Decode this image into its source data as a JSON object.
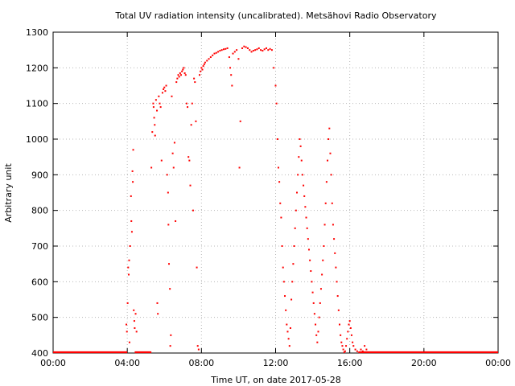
{
  "chart_data": {
    "type": "scatter",
    "title": "Total UV radiation intensity (uncalibrated). Metsähovi Radio Observatory",
    "xlabel": "Time UT, on date 2017-05-28",
    "ylabel": "Arbitrary unit",
    "xlim": [
      0,
      24
    ],
    "ylim": [
      400,
      1300
    ],
    "x_unit": "hours UT",
    "x_ticks": [
      0,
      4,
      8,
      12,
      16,
      20,
      24
    ],
    "x_tick_labels": [
      "00:00",
      "04:00",
      "08:00",
      "12:00",
      "16:00",
      "20:00",
      "00:00"
    ],
    "y_ticks": [
      400,
      500,
      600,
      700,
      800,
      900,
      1000,
      1100,
      1200,
      1300
    ],
    "y_tick_labels": [
      "400",
      "500",
      "600",
      "700",
      "800",
      "900",
      "1000",
      "1100",
      "1200",
      "1300"
    ],
    "grid": true,
    "color": "#ff0000",
    "series": [
      {
        "points": [
          [
            3.95,
            480
          ],
          [
            3.98,
            460
          ],
          [
            4.02,
            540
          ],
          [
            4.05,
            640
          ],
          [
            4.08,
            620
          ],
          [
            4.1,
            660
          ],
          [
            4.12,
            430
          ],
          [
            4.15,
            700
          ],
          [
            4.2,
            840
          ],
          [
            4.22,
            770
          ],
          [
            4.25,
            740
          ],
          [
            4.28,
            910
          ],
          [
            4.3,
            880
          ],
          [
            4.32,
            970
          ],
          [
            4.35,
            520
          ],
          [
            4.38,
            490
          ],
          [
            4.4,
            470
          ],
          [
            4.45,
            510
          ],
          [
            4.5,
            460
          ],
          [
            5.3,
            920
          ],
          [
            5.35,
            1020
          ],
          [
            5.4,
            1100
          ],
          [
            5.42,
            1090
          ],
          [
            5.45,
            1060
          ],
          [
            5.48,
            1040
          ],
          [
            5.5,
            1010
          ],
          [
            5.55,
            1110
          ],
          [
            5.6,
            1080
          ],
          [
            5.62,
            540
          ],
          [
            5.65,
            510
          ],
          [
            5.7,
            1120
          ],
          [
            5.75,
            1100
          ],
          [
            5.8,
            1090
          ],
          [
            5.85,
            940
          ],
          [
            5.9,
            1130
          ],
          [
            5.95,
            1140
          ],
          [
            6.0,
            1145
          ],
          [
            6.05,
            1135
          ],
          [
            6.1,
            1150
          ],
          [
            6.15,
            900
          ],
          [
            6.2,
            850
          ],
          [
            6.22,
            760
          ],
          [
            6.25,
            650
          ],
          [
            6.3,
            580
          ],
          [
            6.32,
            420
          ],
          [
            6.35,
            450
          ],
          [
            6.4,
            1120
          ],
          [
            6.45,
            960
          ],
          [
            6.5,
            920
          ],
          [
            6.55,
            990
          ],
          [
            6.6,
            770
          ],
          [
            6.65,
            1160
          ],
          [
            6.7,
            1170
          ],
          [
            6.75,
            1180
          ],
          [
            6.8,
            1175
          ],
          [
            6.85,
            1185
          ],
          [
            6.9,
            1180
          ],
          [
            6.95,
            1190
          ],
          [
            7.0,
            1195
          ],
          [
            7.05,
            1200
          ],
          [
            7.1,
            1185
          ],
          [
            7.15,
            1180
          ],
          [
            7.2,
            1100
          ],
          [
            7.25,
            1090
          ],
          [
            7.3,
            950
          ],
          [
            7.35,
            940
          ],
          [
            7.4,
            870
          ],
          [
            7.45,
            1040
          ],
          [
            7.5,
            1100
          ],
          [
            7.55,
            800
          ],
          [
            7.6,
            1170
          ],
          [
            7.65,
            1160
          ],
          [
            7.7,
            1050
          ],
          [
            7.75,
            640
          ],
          [
            7.8,
            420
          ],
          [
            7.85,
            410
          ],
          [
            7.9,
            1180
          ],
          [
            7.95,
            1190
          ],
          [
            8.0,
            1200
          ],
          [
            8.05,
            1195
          ],
          [
            8.1,
            1205
          ],
          [
            8.15,
            1210
          ],
          [
            8.2,
            1215
          ],
          [
            8.3,
            1220
          ],
          [
            8.4,
            1225
          ],
          [
            8.5,
            1230
          ],
          [
            8.6,
            1235
          ],
          [
            8.7,
            1240
          ],
          [
            8.8,
            1242
          ],
          [
            8.9,
            1245
          ],
          [
            9.0,
            1248
          ],
          [
            9.1,
            1250
          ],
          [
            9.2,
            1252
          ],
          [
            9.3,
            1253
          ],
          [
            9.4,
            1255
          ],
          [
            9.5,
            1230
          ],
          [
            9.55,
            1200
          ],
          [
            9.6,
            1180
          ],
          [
            9.65,
            1150
          ],
          [
            9.7,
            1240
          ],
          [
            9.8,
            1245
          ],
          [
            9.9,
            1250
          ],
          [
            10.0,
            1225
          ],
          [
            10.05,
            920
          ],
          [
            10.1,
            1050
          ],
          [
            10.2,
            1255
          ],
          [
            10.3,
            1260
          ],
          [
            10.4,
            1258
          ],
          [
            10.5,
            1255
          ],
          [
            10.6,
            1250
          ],
          [
            10.7,
            1245
          ],
          [
            10.8,
            1248
          ],
          [
            10.9,
            1250
          ],
          [
            11.0,
            1252
          ],
          [
            11.1,
            1255
          ],
          [
            11.2,
            1250
          ],
          [
            11.3,
            1248
          ],
          [
            11.4,
            1252
          ],
          [
            11.5,
            1255
          ],
          [
            11.6,
            1250
          ],
          [
            11.7,
            1253
          ],
          [
            11.8,
            1250
          ],
          [
            11.9,
            1200
          ],
          [
            12.0,
            1150
          ],
          [
            12.05,
            1100
          ],
          [
            12.1,
            1000
          ],
          [
            12.15,
            920
          ],
          [
            12.2,
            880
          ],
          [
            12.25,
            820
          ],
          [
            12.3,
            780
          ],
          [
            12.35,
            700
          ],
          [
            12.4,
            640
          ],
          [
            12.45,
            600
          ],
          [
            12.5,
            560
          ],
          [
            12.55,
            520
          ],
          [
            12.6,
            480
          ],
          [
            12.65,
            460
          ],
          [
            12.7,
            440
          ],
          [
            12.75,
            420
          ],
          [
            12.8,
            470
          ],
          [
            12.85,
            550
          ],
          [
            12.9,
            600
          ],
          [
            12.95,
            650
          ],
          [
            13.0,
            700
          ],
          [
            13.05,
            750
          ],
          [
            13.1,
            800
          ],
          [
            13.15,
            850
          ],
          [
            13.2,
            900
          ],
          [
            13.25,
            950
          ],
          [
            13.3,
            1000
          ],
          [
            13.35,
            980
          ],
          [
            13.4,
            940
          ],
          [
            13.45,
            900
          ],
          [
            13.5,
            870
          ],
          [
            13.55,
            840
          ],
          [
            13.6,
            810
          ],
          [
            13.65,
            780
          ],
          [
            13.7,
            750
          ],
          [
            13.75,
            720
          ],
          [
            13.8,
            690
          ],
          [
            13.85,
            660
          ],
          [
            13.9,
            630
          ],
          [
            13.95,
            600
          ],
          [
            14.0,
            570
          ],
          [
            14.05,
            540
          ],
          [
            14.1,
            510
          ],
          [
            14.15,
            480
          ],
          [
            14.2,
            450
          ],
          [
            14.25,
            430
          ],
          [
            14.3,
            460
          ],
          [
            14.35,
            500
          ],
          [
            14.4,
            540
          ],
          [
            14.45,
            580
          ],
          [
            14.5,
            620
          ],
          [
            14.55,
            660
          ],
          [
            14.6,
            700
          ],
          [
            14.65,
            760
          ],
          [
            14.7,
            820
          ],
          [
            14.75,
            880
          ],
          [
            14.8,
            940
          ],
          [
            14.85,
            1000
          ],
          [
            14.9,
            1030
          ],
          [
            14.95,
            960
          ],
          [
            15.0,
            900
          ],
          [
            15.05,
            820
          ],
          [
            15.1,
            760
          ],
          [
            15.15,
            720
          ],
          [
            15.2,
            680
          ],
          [
            15.25,
            640
          ],
          [
            15.3,
            600
          ],
          [
            15.35,
            560
          ],
          [
            15.4,
            520
          ],
          [
            15.45,
            480
          ],
          [
            15.5,
            450
          ],
          [
            15.55,
            430
          ],
          [
            15.6,
            420
          ],
          [
            15.65,
            410
          ],
          [
            15.7,
            400
          ],
          [
            15.75,
            405
          ],
          [
            15.8,
            420
          ],
          [
            15.85,
            440
          ],
          [
            15.9,
            460
          ],
          [
            15.95,
            480
          ],
          [
            16.0,
            490
          ],
          [
            16.05,
            470
          ],
          [
            16.1,
            450
          ],
          [
            16.15,
            430
          ],
          [
            16.2,
            420
          ],
          [
            16.3,
            410
          ],
          [
            16.4,
            405
          ],
          [
            16.5,
            400
          ],
          [
            16.6,
            410
          ],
          [
            16.7,
            405
          ],
          [
            16.8,
            420
          ],
          [
            16.9,
            410
          ],
          [
            17.0,
            400
          ]
        ]
      }
    ],
    "baseline": {
      "y": 400,
      "segments": [
        [
          0,
          4.0
        ],
        [
          4.4,
          5.3
        ],
        [
          16.5,
          24
        ]
      ]
    }
  }
}
